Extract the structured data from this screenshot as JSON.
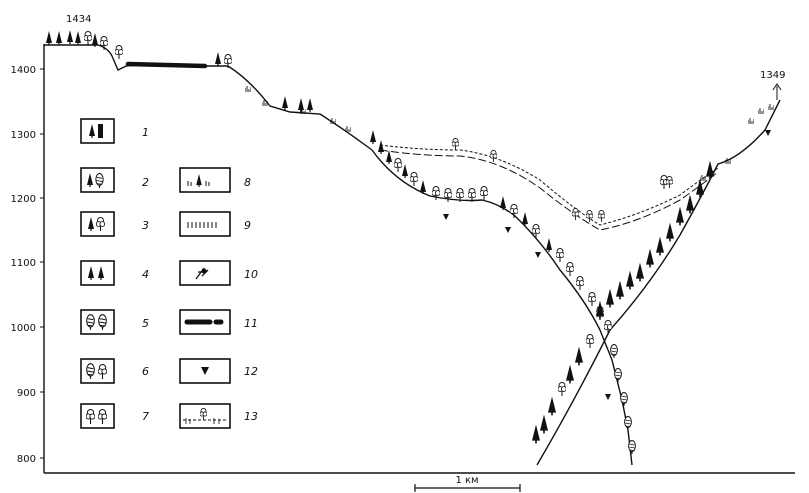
{
  "peaks": {
    "left": "1434",
    "right": "1349"
  },
  "y_axis": {
    "ticks": [
      "1400",
      "1300",
      "1200",
      "1100",
      "1000",
      "900",
      "800"
    ]
  },
  "scale_bar": {
    "label": "1 км"
  },
  "legend": {
    "left_numbers": [
      "1",
      "2",
      "3",
      "4",
      "5",
      "6",
      "7"
    ],
    "right_numbers": [
      "8",
      "9",
      "10",
      "11",
      "12",
      "13"
    ]
  }
}
